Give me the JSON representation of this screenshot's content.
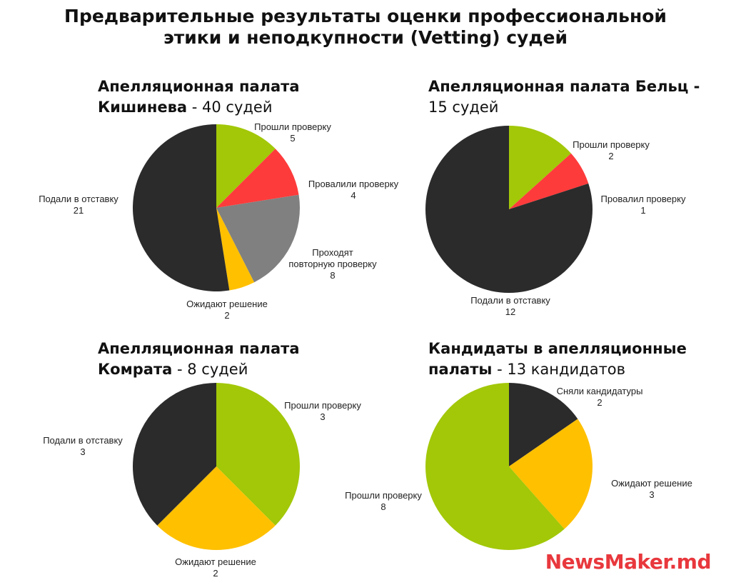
{
  "title": {
    "line1": "Предварительные результаты оценки профессиональной",
    "line2": "этики и неподкупности (Vetting) судей"
  },
  "logo": "NewsMaker.md",
  "colors": {
    "green": "#a2c808",
    "red": "#fe3b3b",
    "grey": "#808080",
    "yellow": "#ffc000",
    "black": "#2b2b2b"
  },
  "chart_data": [
    {
      "type": "pie",
      "title_line1": "Апелляционная палата",
      "title_name": "Кишинева",
      "title_count": " - 40 судей",
      "slices": [
        {
          "label": "Прошли проверку",
          "value": 5,
          "color": "#a2c808"
        },
        {
          "label": "Провалили проверку",
          "value": 4,
          "color": "#fe3b3b"
        },
        {
          "label": "Проходят повторную проверку",
          "value": 8,
          "color": "#808080"
        },
        {
          "label": "Ожидают решение",
          "value": 2,
          "color": "#ffc000"
        },
        {
          "label": "Подали в отставку",
          "value": 21,
          "color": "#2b2b2b"
        }
      ]
    },
    {
      "type": "pie",
      "title_line1": "Апелляционная палата Бельц -",
      "title_name": "",
      "title_count": "15 судей",
      "slices": [
        {
          "label": "Прошли проверку",
          "value": 2,
          "color": "#a2c808"
        },
        {
          "label": "Провалил проверку",
          "value": 1,
          "color": "#fe3b3b"
        },
        {
          "label": "Подали в отставку",
          "value": 12,
          "color": "#2b2b2b"
        }
      ]
    },
    {
      "type": "pie",
      "title_line1": "Апелляционная палата",
      "title_name": "Комрата",
      "title_count": " - 8 судей",
      "slices": [
        {
          "label": "Прошли проверку",
          "value": 3,
          "color": "#a2c808"
        },
        {
          "label": "Ожидают решение",
          "value": 2,
          "color": "#ffc000"
        },
        {
          "label": "Подали в отставку",
          "value": 3,
          "color": "#2b2b2b"
        }
      ]
    },
    {
      "type": "pie",
      "title_line1": "Кандидаты в апелляционные",
      "title_name": "палаты",
      "title_count": " - 13 кандидатов",
      "slices": [
        {
          "label": "Сняли кандидатуры",
          "value": 2,
          "color": "#2b2b2b"
        },
        {
          "label": "Ожидают решение",
          "value": 3,
          "color": "#ffc000"
        },
        {
          "label": "Прошли проверку",
          "value": 8,
          "color": "#a2c808"
        }
      ]
    }
  ]
}
